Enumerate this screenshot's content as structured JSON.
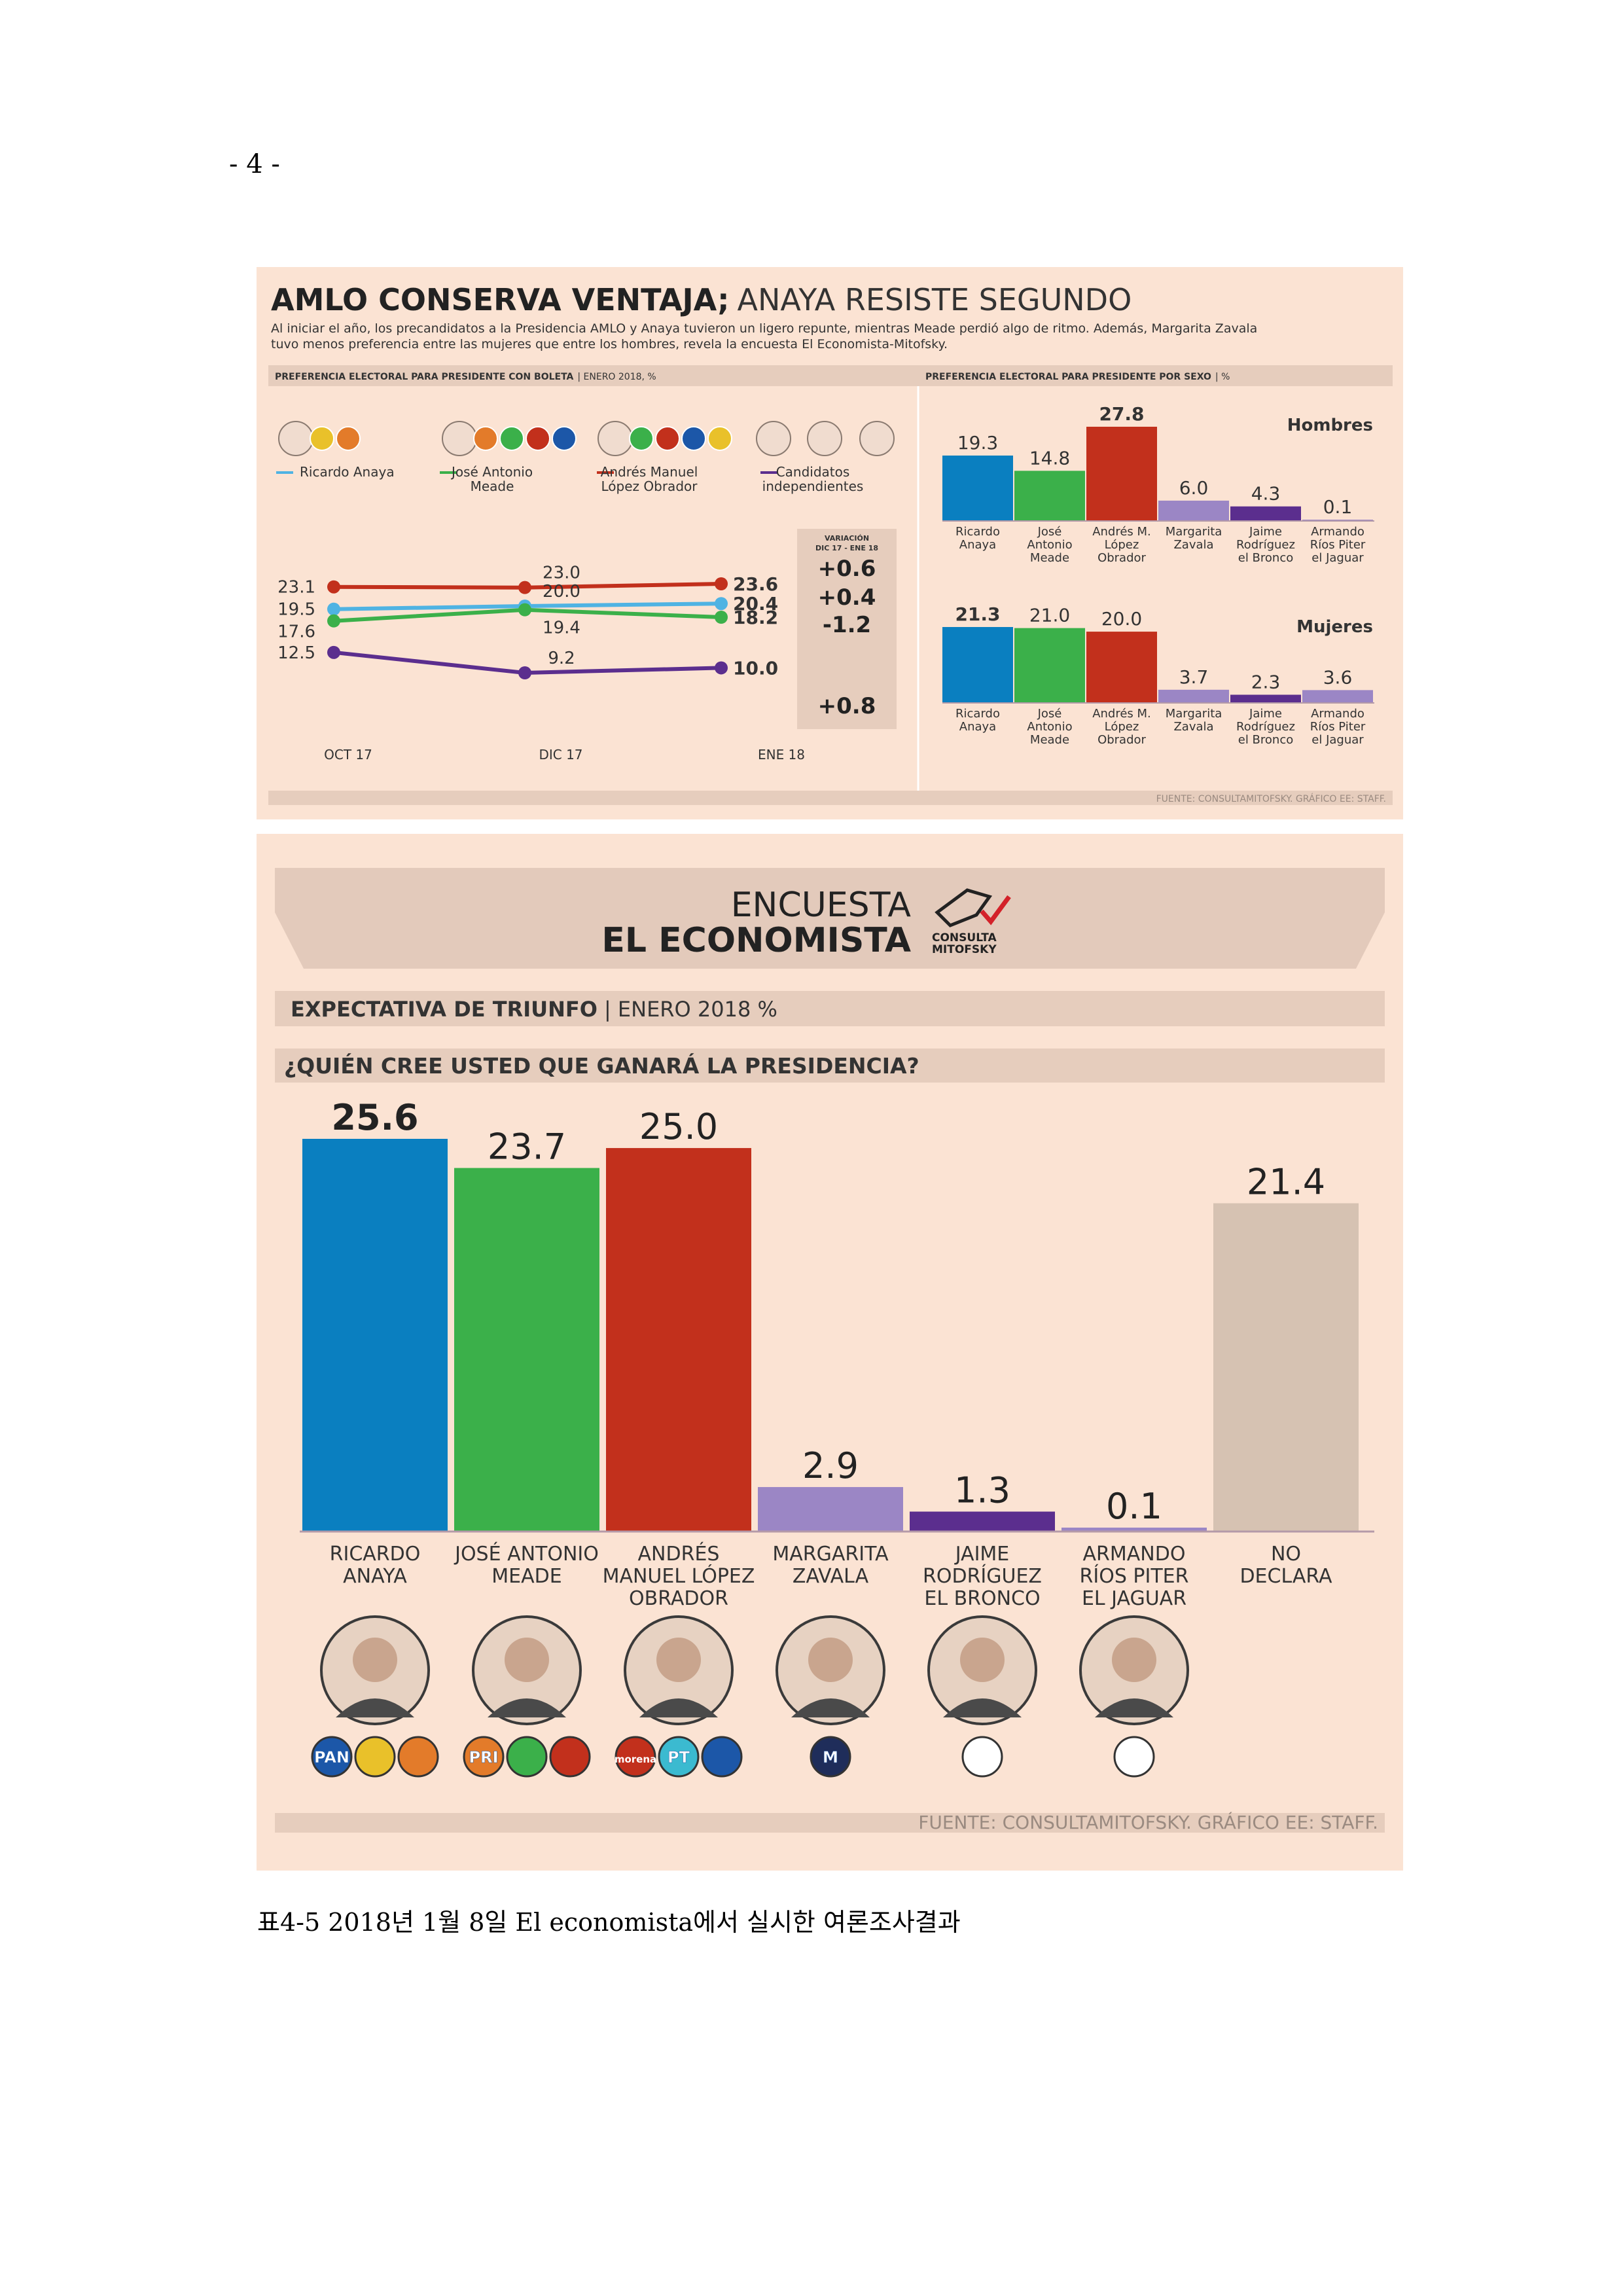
{
  "page": {
    "number": "- 4 -"
  },
  "caption": "표4-5 2018년 1월 8일 El economista에서 실시한 여론조사결과",
  "colors": {
    "anaya": "#0a7fc0",
    "meade": "#3bb04a",
    "amlo": "#c2301c",
    "zavala": "#9b86c5",
    "bronco": "#5b2e8e",
    "jaguar": "#9b86c5",
    "nodeclara": "#d6c2b2",
    "indep": "#5b2e8e",
    "bg": "#fbe3d3"
  },
  "panel1": {
    "title_bold": "AMLO CONSERVA VENTAJA;",
    "title_light": "ANAYA RESISTE SEGUNDO",
    "intro": [
      "Al iniciar el año, los precandidatos a la Presidencia AMLO y Anaya tuvieron un ligero repunte, mientras Meade perdió algo de ritmo. Además, Margarita Zavala",
      "tuvo menos preferencia entre las mujeres que entre los hombres, revela la encuesta El Economista-Mitofsky."
    ],
    "left_header": "PREFERENCIA ELECTORAL PARA PRESIDENTE CON BOLETA",
    "left_header_sub": "| ENERO 2018, %",
    "right_header": "PREFERENCIA ELECTORAL PARA PRESIDENTE POR SEXO",
    "right_header_sub": "| %",
    "legend": [
      {
        "lines": [
          "Ricardo Anaya"
        ],
        "color": "#4fb3e3"
      },
      {
        "lines": [
          "José Antonio",
          "Meade"
        ],
        "color": "#3bb04a"
      },
      {
        "lines": [
          "Andrés Manuel",
          "López Obrador"
        ],
        "color": "#c2301c"
      },
      {
        "lines": [
          "Candidatos",
          "independientes"
        ],
        "color": "#5b2e8e"
      }
    ],
    "variation_title": [
      "VARIACIÓN",
      "DIC 17 - ENE 18"
    ],
    "source": "FUENTE: CONSULTAMITOFSKY.  GRÁFICO EE: STAFF."
  },
  "chart_data": [
    {
      "type": "line",
      "title": "PREFERENCIA ELECTORAL PARA PRESIDENTE CON BOLETA",
      "x": [
        "OCT 17",
        "DIC 17",
        "ENE 18"
      ],
      "series": [
        {
          "name": "Andrés Manuel López Obrador",
          "values": [
            23.1,
            23.0,
            23.6
          ],
          "labels": [
            "23.1",
            "23.0",
            "23.6"
          ],
          "variation": "+0.6"
        },
        {
          "name": "Ricardo Anaya",
          "values": [
            19.5,
            20.0,
            20.4
          ],
          "labels": [
            "19.5",
            "20.0",
            "20.4"
          ],
          "variation": "+0.4"
        },
        {
          "name": "José Antonio Meade",
          "values": [
            17.6,
            19.4,
            18.2
          ],
          "labels": [
            "17.6",
            "19.4",
            "18.2"
          ],
          "variation": "-1.2"
        },
        {
          "name": "Candidatos independientes",
          "values": [
            12.5,
            9.2,
            10.0
          ],
          "labels": [
            "12.5",
            "9.2",
            "10.0"
          ],
          "variation": "+0.8"
        }
      ]
    },
    {
      "type": "bar",
      "title": "Hombres",
      "categories": [
        [
          "Ricardo",
          "Anaya"
        ],
        [
          "José",
          "Antonio",
          "Meade"
        ],
        [
          "Andrés M.",
          "López",
          "Obrador"
        ],
        [
          "Margarita",
          "Zavala"
        ],
        [
          "Jaime",
          "Rodríguez",
          "el Bronco"
        ],
        [
          "Armando",
          "Ríos Piter",
          "el Jaguar"
        ]
      ],
      "values": [
        19.3,
        14.8,
        27.8,
        6.0,
        4.3,
        0.1
      ],
      "labels": [
        "19.3",
        "14.8",
        "27.8",
        "6.0",
        "4.3",
        "0.1"
      ],
      "ylim": [
        0,
        27.8
      ]
    },
    {
      "type": "bar",
      "title": "Mujeres",
      "categories": [
        [
          "Ricardo",
          "Anaya"
        ],
        [
          "José",
          "Antonio",
          "Meade"
        ],
        [
          "Andrés M.",
          "López",
          "Obrador"
        ],
        [
          "Margarita",
          "Zavala"
        ],
        [
          "Jaime",
          "Rodríguez",
          "el Bronco"
        ],
        [
          "Armando",
          "Ríos Piter",
          "el Jaguar"
        ]
      ],
      "values": [
        21.3,
        21.0,
        20.0,
        3.7,
        2.3,
        3.6
      ],
      "labels": [
        "21.3",
        "21.0",
        "20.0",
        "3.7",
        "2.3",
        "3.6"
      ],
      "ylim": [
        0,
        21.3
      ]
    },
    {
      "type": "bar",
      "title": "¿QUIÉN CREE USTED QUE GANARÁ LA PRESIDENCIA?",
      "categories": [
        [
          "RICARDO",
          "ANAYA"
        ],
        [
          "JOSÉ ANTONIO",
          "MEADE"
        ],
        [
          "ANDRÉS",
          "MANUEL LÓPEZ",
          "OBRADOR"
        ],
        [
          "MARGARITA",
          "ZAVALA"
        ],
        [
          "JAIME",
          "RODRÍGUEZ",
          "EL BRONCO"
        ],
        [
          "ARMANDO",
          "RÍOS PITER",
          "EL JAGUAR"
        ],
        [
          "NO",
          "DECLARA"
        ]
      ],
      "values": [
        25.6,
        23.7,
        25.0,
        2.9,
        1.3,
        0.1,
        21.4
      ],
      "labels": [
        "25.6",
        "23.7",
        "25.0",
        "2.9",
        "1.3",
        "0.1",
        "21.4"
      ],
      "ylim": [
        0,
        25.6
      ]
    }
  ],
  "panel2": {
    "banner_line1": "ENCUESTA",
    "banner_line2": "EL ECONOMISTA",
    "logo_text": [
      "CONSULTA",
      "MITOFSKY"
    ],
    "subheader_bold": "EXPECTATIVA DE TRIUNFO",
    "subheader_light": "| ENERO 2018 %",
    "question": "¿QUIÉN CREE USTED QUE GANARÁ LA PRESIDENCIA?",
    "party_logos": [
      [
        "PAN"
      ],
      [
        "PRI"
      ],
      [
        "morena",
        "PT"
      ],
      [
        "M"
      ]
    ],
    "source": "FUENTE: CONSULTAMITOFSKY.  GRÁFICO EE: STAFF."
  }
}
